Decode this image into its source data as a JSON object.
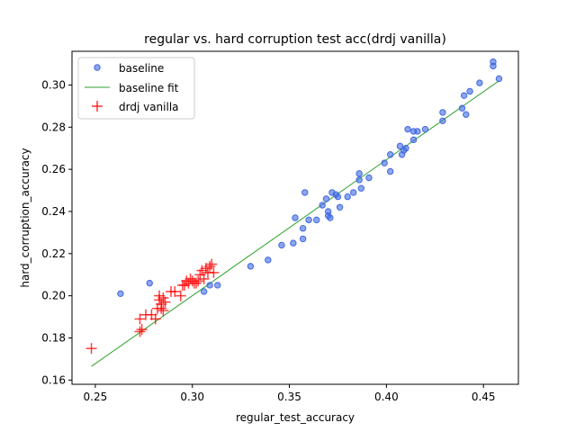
{
  "chart_data": {
    "type": "scatter",
    "title": "regular vs. hard corruption test acc(drdj vanilla)",
    "xlabel": "regular_test_accuracy",
    "ylabel": "hard_corruption_accuracy",
    "xlim": [
      0.238,
      0.468
    ],
    "ylim": [
      0.158,
      0.316
    ],
    "xticks": [
      "0.25",
      "0.30",
      "0.35",
      "0.40",
      "0.45"
    ],
    "yticks": [
      "0.16",
      "0.18",
      "0.20",
      "0.22",
      "0.24",
      "0.26",
      "0.28",
      "0.30"
    ],
    "grid": false,
    "legend_position": "top-left",
    "series": [
      {
        "name": "baseline",
        "kind": "scatter-dot",
        "color": "#4169e1",
        "points": [
          [
            0.263,
            0.201
          ],
          [
            0.278,
            0.206
          ],
          [
            0.306,
            0.202
          ],
          [
            0.309,
            0.205
          ],
          [
            0.313,
            0.205
          ],
          [
            0.33,
            0.214
          ],
          [
            0.339,
            0.217
          ],
          [
            0.346,
            0.224
          ],
          [
            0.352,
            0.225
          ],
          [
            0.357,
            0.227
          ],
          [
            0.357,
            0.232
          ],
          [
            0.353,
            0.237
          ],
          [
            0.358,
            0.249
          ],
          [
            0.36,
            0.236
          ],
          [
            0.364,
            0.236
          ],
          [
            0.367,
            0.243
          ],
          [
            0.369,
            0.246
          ],
          [
            0.37,
            0.238
          ],
          [
            0.37,
            0.24
          ],
          [
            0.371,
            0.237
          ],
          [
            0.372,
            0.249
          ],
          [
            0.374,
            0.248
          ],
          [
            0.375,
            0.247
          ],
          [
            0.376,
            0.242
          ],
          [
            0.38,
            0.247
          ],
          [
            0.383,
            0.249
          ],
          [
            0.386,
            0.255
          ],
          [
            0.386,
            0.258
          ],
          [
            0.387,
            0.251
          ],
          [
            0.391,
            0.256
          ],
          [
            0.399,
            0.263
          ],
          [
            0.402,
            0.259
          ],
          [
            0.402,
            0.267
          ],
          [
            0.407,
            0.271
          ],
          [
            0.408,
            0.267
          ],
          [
            0.409,
            0.269
          ],
          [
            0.41,
            0.27
          ],
          [
            0.411,
            0.279
          ],
          [
            0.414,
            0.274
          ],
          [
            0.414,
            0.278
          ],
          [
            0.416,
            0.278
          ],
          [
            0.42,
            0.279
          ],
          [
            0.429,
            0.283
          ],
          [
            0.429,
            0.287
          ],
          [
            0.439,
            0.289
          ],
          [
            0.44,
            0.295
          ],
          [
            0.441,
            0.286
          ],
          [
            0.443,
            0.297
          ],
          [
            0.448,
            0.301
          ],
          [
            0.455,
            0.309
          ],
          [
            0.455,
            0.311
          ],
          [
            0.458,
            0.303
          ]
        ]
      },
      {
        "name": "baseline fit",
        "kind": "line",
        "color": "#2ca02c",
        "points": [
          [
            0.248,
            0.1665
          ],
          [
            0.458,
            0.302
          ]
        ]
      },
      {
        "name": "drdj vanilla",
        "kind": "scatter-plus",
        "color": "#ff0000",
        "points": [
          [
            0.248,
            0.175
          ],
          [
            0.273,
            0.183
          ],
          [
            0.274,
            0.184
          ],
          [
            0.273,
            0.189
          ],
          [
            0.276,
            0.191
          ],
          [
            0.279,
            0.191
          ],
          [
            0.281,
            0.189
          ],
          [
            0.282,
            0.194
          ],
          [
            0.283,
            0.198
          ],
          [
            0.283,
            0.2
          ],
          [
            0.284,
            0.194
          ],
          [
            0.284,
            0.196
          ],
          [
            0.285,
            0.199
          ],
          [
            0.285,
            0.193
          ],
          [
            0.286,
            0.197
          ],
          [
            0.289,
            0.202
          ],
          [
            0.291,
            0.202
          ],
          [
            0.294,
            0.2
          ],
          [
            0.295,
            0.205
          ],
          [
            0.296,
            0.205
          ],
          [
            0.297,
            0.207
          ],
          [
            0.298,
            0.206
          ],
          [
            0.299,
            0.208
          ],
          [
            0.3,
            0.207
          ],
          [
            0.301,
            0.206
          ],
          [
            0.302,
            0.206
          ],
          [
            0.303,
            0.207
          ],
          [
            0.304,
            0.21
          ],
          [
            0.305,
            0.212
          ],
          [
            0.306,
            0.208
          ],
          [
            0.307,
            0.213
          ],
          [
            0.308,
            0.211
          ],
          [
            0.309,
            0.214
          ],
          [
            0.31,
            0.215
          ],
          [
            0.311,
            0.211
          ]
        ]
      }
    ]
  }
}
